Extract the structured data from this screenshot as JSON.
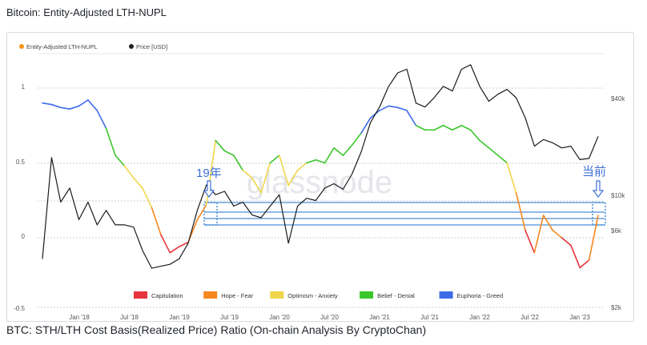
{
  "title": "Bitcoin: Entity-Adjusted LTH-NUPL",
  "footer_text": "BTC: STH/LTH Cost Basis(Realized Price) Ratio (On-chain Analysis By CryptoChan)",
  "watermark": "glassnode",
  "chart_data": {
    "type": "line",
    "title": "Bitcoin: Entity-Adjusted LTH-NUPL",
    "legend_top": [
      {
        "name": "Entity-Adjusted LTH-NUPL",
        "color": "#f7931a"
      },
      {
        "name": "Price [USD]",
        "color": "#222222"
      }
    ],
    "x_ticks": [
      "Jan '18",
      "Jul '18",
      "Jan '19",
      "Jul '19",
      "Jan '20",
      "Jul '20",
      "Jan '21",
      "Jul '21",
      "Jan '22",
      "Jul '22",
      "Jan '23"
    ],
    "y_left": {
      "ticks": [
        "1",
        "0.5",
        "0",
        "-0.5"
      ],
      "range": [
        -0.5,
        1.1
      ]
    },
    "y_right": {
      "ticks": [
        "$40k",
        "$10k",
        "$6k",
        "$2k"
      ],
      "scale": "log"
    },
    "zones": [
      {
        "name": "Capitulation",
        "color": "#e8353d"
      },
      {
        "name": "Hope - Fear",
        "color": "#f6881f"
      },
      {
        "name": "Optimism - Anxiety",
        "color": "#f0d64a"
      },
      {
        "name": "Belief - Denial",
        "color": "#3cc72c"
      },
      {
        "name": "Euphoria - Greed",
        "color": "#3f6be8"
      }
    ],
    "series": [
      {
        "name": "Entity-Adjusted LTH-NUPL",
        "x": [
          "2017-12",
          "2018-01",
          "2018-02",
          "2018-03",
          "2018-04",
          "2018-05",
          "2018-06",
          "2018-07",
          "2018-08",
          "2018-09",
          "2018-10",
          "2018-11",
          "2018-12",
          "2019-01",
          "2019-02",
          "2019-03",
          "2019-04",
          "2019-05",
          "2019-06",
          "2019-07",
          "2019-08",
          "2019-09",
          "2019-10",
          "2019-11",
          "2019-12",
          "2020-01",
          "2020-02",
          "2020-03",
          "2020-04",
          "2020-05",
          "2020-06",
          "2020-07",
          "2020-08",
          "2020-09",
          "2020-10",
          "2020-11",
          "2020-12",
          "2021-01",
          "2021-02",
          "2021-03",
          "2021-04",
          "2021-05",
          "2021-06",
          "2021-07",
          "2021-08",
          "2021-09",
          "2021-10",
          "2021-11",
          "2021-12",
          "2022-01",
          "2022-02",
          "2022-03",
          "2022-04",
          "2022-05",
          "2022-06",
          "2022-07",
          "2022-08",
          "2022-09",
          "2022-10",
          "2022-11",
          "2022-12",
          "2023-01"
        ],
        "y": [
          0.9,
          0.89,
          0.87,
          0.86,
          0.88,
          0.92,
          0.85,
          0.73,
          0.55,
          0.48,
          0.4,
          0.33,
          0.2,
          0.02,
          -0.1,
          -0.06,
          -0.03,
          0.12,
          0.22,
          0.65,
          0.58,
          0.55,
          0.45,
          0.4,
          0.3,
          0.5,
          0.55,
          0.35,
          0.45,
          0.5,
          0.52,
          0.5,
          0.6,
          0.55,
          0.62,
          0.7,
          0.8,
          0.85,
          0.88,
          0.87,
          0.85,
          0.75,
          0.72,
          0.72,
          0.75,
          0.72,
          0.75,
          0.72,
          0.65,
          0.6,
          0.55,
          0.5,
          0.3,
          0.05,
          -0.1,
          0.15,
          0.05,
          0.0,
          -0.05,
          -0.2,
          -0.15,
          0.15
        ]
      },
      {
        "name": "Price [USD]",
        "x": [
          "2017-12",
          "2018-01",
          "2018-02",
          "2018-03",
          "2018-04",
          "2018-05",
          "2018-06",
          "2018-07",
          "2018-08",
          "2018-09",
          "2018-10",
          "2018-11",
          "2018-12",
          "2019-01",
          "2019-02",
          "2019-03",
          "2019-04",
          "2019-05",
          "2019-06",
          "2019-07",
          "2019-08",
          "2019-09",
          "2019-10",
          "2019-11",
          "2019-12",
          "2020-01",
          "2020-02",
          "2020-03",
          "2020-04",
          "2020-05",
          "2020-06",
          "2020-07",
          "2020-08",
          "2020-09",
          "2020-10",
          "2020-11",
          "2020-12",
          "2021-01",
          "2021-02",
          "2021-03",
          "2021-04",
          "2021-05",
          "2021-06",
          "2021-07",
          "2021-08",
          "2021-09",
          "2021-10",
          "2021-11",
          "2021-12",
          "2022-01",
          "2022-02",
          "2022-03",
          "2022-04",
          "2022-05",
          "2022-06",
          "2022-07",
          "2022-08",
          "2022-09",
          "2022-10",
          "2022-11",
          "2022-12",
          "2023-01"
        ],
        "y": [
          4000,
          17000,
          9000,
          11000,
          7000,
          9000,
          6500,
          8000,
          6500,
          6500,
          6300,
          4500,
          3500,
          3600,
          3700,
          4000,
          5000,
          8000,
          11500,
          10000,
          10500,
          8500,
          9000,
          7500,
          7200,
          8500,
          10000,
          5000,
          8500,
          9500,
          9200,
          11000,
          11700,
          10800,
          13500,
          18500,
          28000,
          35000,
          47000,
          57000,
          60000,
          37000,
          35000,
          40000,
          47000,
          44000,
          60000,
          64000,
          47000,
          38000,
          42000,
          45000,
          40000,
          30000,
          20000,
          22000,
          21000,
          19500,
          20000,
          16500,
          16800,
          23000
        ]
      }
    ],
    "annotations": [
      {
        "text": "19年",
        "color": "#3b6fd8"
      },
      {
        "text": "当前",
        "color": "#3b6fd8"
      }
    ],
    "grid": "horizontal dashed"
  }
}
